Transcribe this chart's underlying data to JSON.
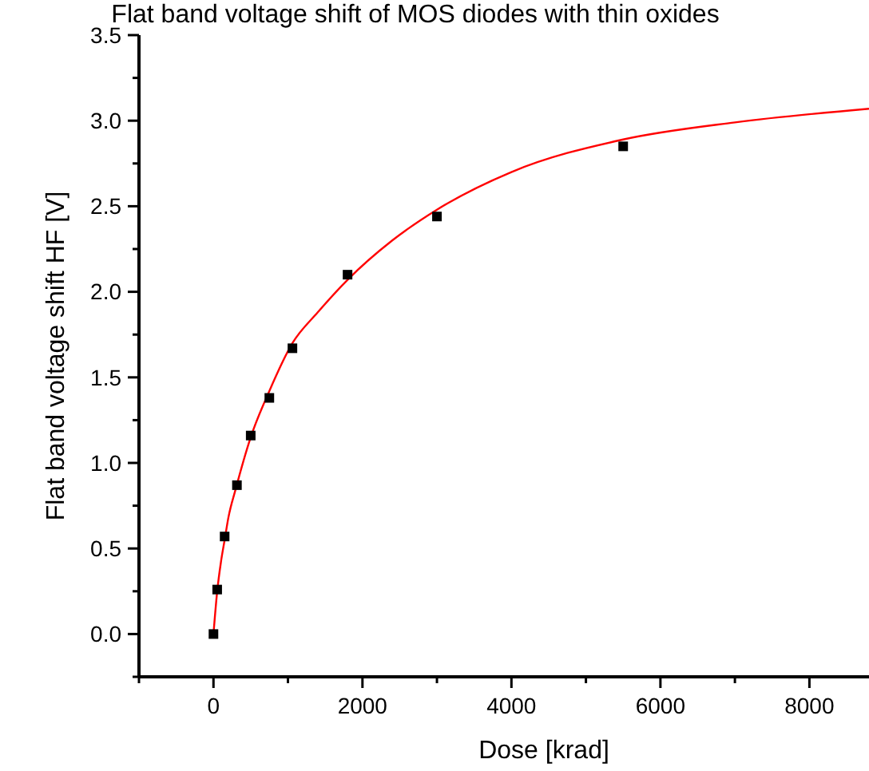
{
  "chart_data": {
    "type": "scatter",
    "title": "Flat band voltage shift of MOS diodes with thin oxides",
    "xlabel": "Dose [krad]",
    "ylabel": "Flat band voltage shift HF [V]",
    "xlim": [
      -1000,
      8800
    ],
    "ylim": [
      -0.25,
      3.5
    ],
    "xticks": [
      {
        "value": -1000,
        "label": null
      },
      0,
      {
        "value": 1000,
        "label": null
      },
      2000,
      {
        "value": 3000,
        "label": null
      },
      4000,
      {
        "value": 5000,
        "label": null
      },
      6000,
      {
        "value": 7000,
        "label": null
      },
      8000
    ],
    "yticks": [
      {
        "value": -0.25,
        "label": null
      },
      {
        "value": 0,
        "label": "0.0"
      },
      {
        "value": 0.25,
        "label": null
      },
      0.5,
      {
        "value": 0.75,
        "label": null
      },
      {
        "value": 1,
        "label": "1.0"
      },
      {
        "value": 1.25,
        "label": null
      },
      1.5,
      {
        "value": 1.75,
        "label": null
      },
      {
        "value": 2,
        "label": "2.0"
      },
      {
        "value": 2.25,
        "label": null
      },
      2.5,
      {
        "value": 2.75,
        "label": null
      },
      {
        "value": 3,
        "label": "3.0"
      },
      {
        "value": 3.25,
        "label": null
      },
      3.5
    ],
    "grid": false,
    "marker": "square",
    "series": [
      {
        "color": "#000000",
        "x": [
          0,
          50,
          150,
          315,
          500,
          750,
          1060,
          1800,
          3000,
          5500
        ],
        "values": [
          0,
          0.26,
          0.57,
          0.87,
          1.16,
          1.38,
          1.67,
          2.1,
          2.44,
          2.85
        ]
      },
      {
        "type": "line",
        "color": "#ff0000",
        "marker": "none",
        "line_style": "solid",
        "x": [
          0,
          50,
          100,
          150,
          200,
          300,
          500,
          750,
          1060,
          1400,
          1800,
          2400,
          3000,
          4000,
          5500,
          7000,
          8800
        ],
        "values": [
          0,
          0.25,
          0.42,
          0.55,
          0.68,
          0.85,
          1.15,
          1.42,
          1.7,
          1.88,
          2.07,
          2.3,
          2.48,
          2.7,
          2.89,
          2.99,
          3.07
        ]
      }
    ]
  }
}
